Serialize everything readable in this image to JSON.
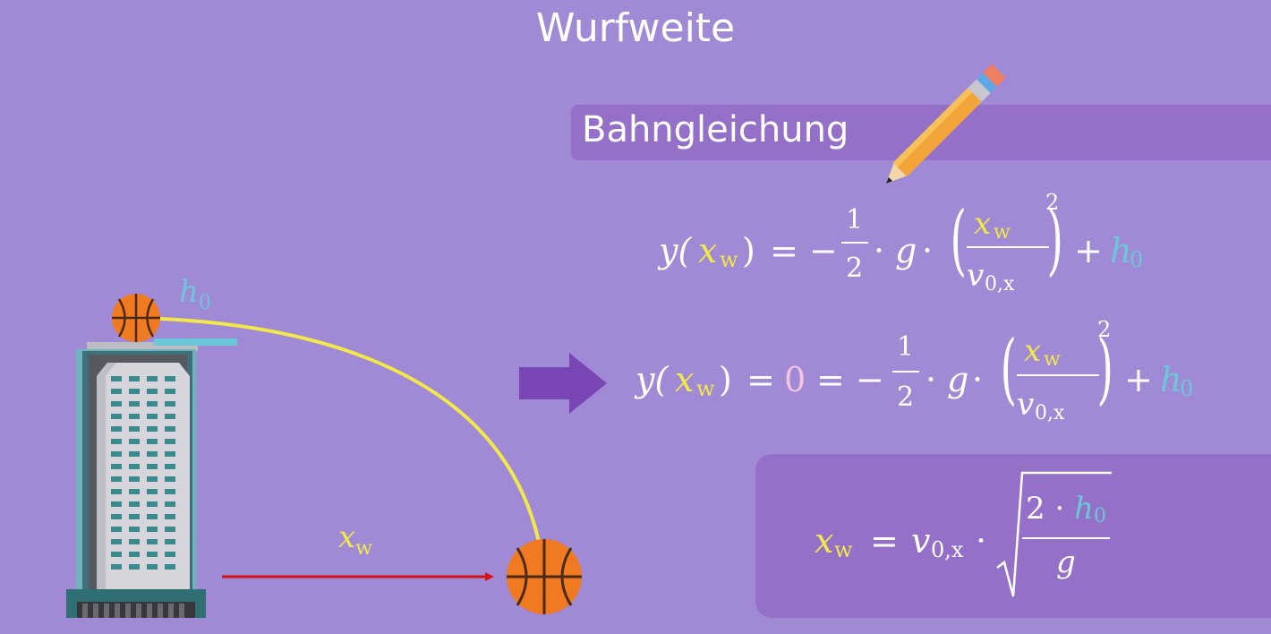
{
  "title": "Wurfweite",
  "banner": {
    "label": "Bahngleichung"
  },
  "labels": {
    "h0": "h",
    "h0_sub": "0",
    "xw": "x",
    "xw_sub": "w"
  },
  "equation1": {
    "lhs_y": "y(",
    "lhs_x": "x",
    "lhs_sub": "w",
    "lhs_close": ")",
    "eq": "= −",
    "frac_num": "1",
    "frac_den": "2",
    "dot": "·",
    "g": "g",
    "x": "x",
    "x_sub": "w",
    "v": "v",
    "v_sub": "0,x",
    "power": "2",
    "plus": "+",
    "h": "h",
    "h_sub": "0"
  },
  "equation2": {
    "lhs_y": "y(",
    "lhs_x": "x",
    "lhs_sub": "w",
    "lhs_close": ")",
    "eq1": "=",
    "zero": "0",
    "eq2": "= −",
    "frac_num": "1",
    "frac_den": "2",
    "dot": "·",
    "g": "g",
    "x": "x",
    "x_sub": "w",
    "v": "v",
    "v_sub": "0,x",
    "power": "2",
    "plus": "+",
    "h": "h",
    "h_sub": "0"
  },
  "result": {
    "x": "x",
    "x_sub": "w",
    "eq": "=",
    "v": "v",
    "v_sub": "0,x",
    "dot": "·",
    "num_2": "2 ·",
    "num_h": "h",
    "num_h_sub": "0",
    "den_g": "g"
  },
  "colors": {
    "background": "#a08ad6",
    "panel": "#9570c8",
    "trajectory": "#f2e84a",
    "distance_arrow": "#d4141a",
    "height_marker": "#6cc8d6",
    "step_arrow": "#7a45b5",
    "ball": "#f07a22"
  },
  "icons": [
    "pencil-icon",
    "basketball-icon",
    "skyscraper-icon",
    "arrow-right-icon"
  ]
}
